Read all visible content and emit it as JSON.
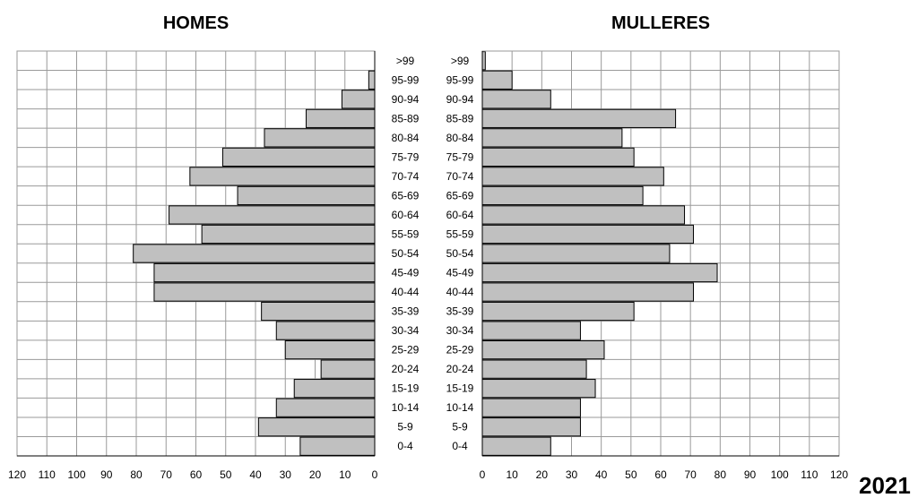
{
  "chart_data": [
    {
      "type": "bar",
      "title": "HOMES",
      "categories": [
        ">99",
        "95-99",
        "90-94",
        "85-89",
        "80-84",
        "75-79",
        "70-74",
        "65-69",
        "60-64",
        "55-59",
        "50-54",
        "45-49",
        "40-44",
        "35-39",
        "30-34",
        "25-29",
        "20-24",
        "15-19",
        "10-14",
        "5-9",
        "0-4"
      ],
      "values": [
        0,
        2,
        11,
        23,
        37,
        51,
        62,
        46,
        69,
        58,
        81,
        74,
        74,
        38,
        33,
        30,
        18,
        27,
        33,
        39,
        25
      ],
      "xlim": [
        0,
        120
      ],
      "x_reversed": true,
      "ticks": [
        "0",
        "10",
        "20",
        "30",
        "40",
        "50",
        "60",
        "70",
        "80",
        "90",
        "100",
        "110",
        "120"
      ],
      "bar_color": "#c0c0c0",
      "grid": true
    },
    {
      "type": "bar",
      "title": "MULLERES",
      "categories": [
        ">99",
        "95-99",
        "90-94",
        "85-89",
        "80-84",
        "75-79",
        "70-74",
        "65-69",
        "60-64",
        "55-59",
        "50-54",
        "45-49",
        "40-44",
        "35-39",
        "30-34",
        "25-29",
        "20-24",
        "15-19",
        "10-14",
        "5-9",
        "0-4"
      ],
      "values": [
        1,
        10,
        23,
        65,
        47,
        51,
        61,
        54,
        68,
        71,
        63,
        79,
        71,
        51,
        33,
        41,
        35,
        38,
        33,
        33,
        23
      ],
      "xlim": [
        0,
        120
      ],
      "x_reversed": false,
      "ticks": [
        "0",
        "10",
        "20",
        "30",
        "40",
        "50",
        "60",
        "70",
        "80",
        "90",
        "100",
        "110",
        "120"
      ],
      "bar_color": "#c0c0c0",
      "grid": true
    }
  ],
  "year_label": "2021"
}
